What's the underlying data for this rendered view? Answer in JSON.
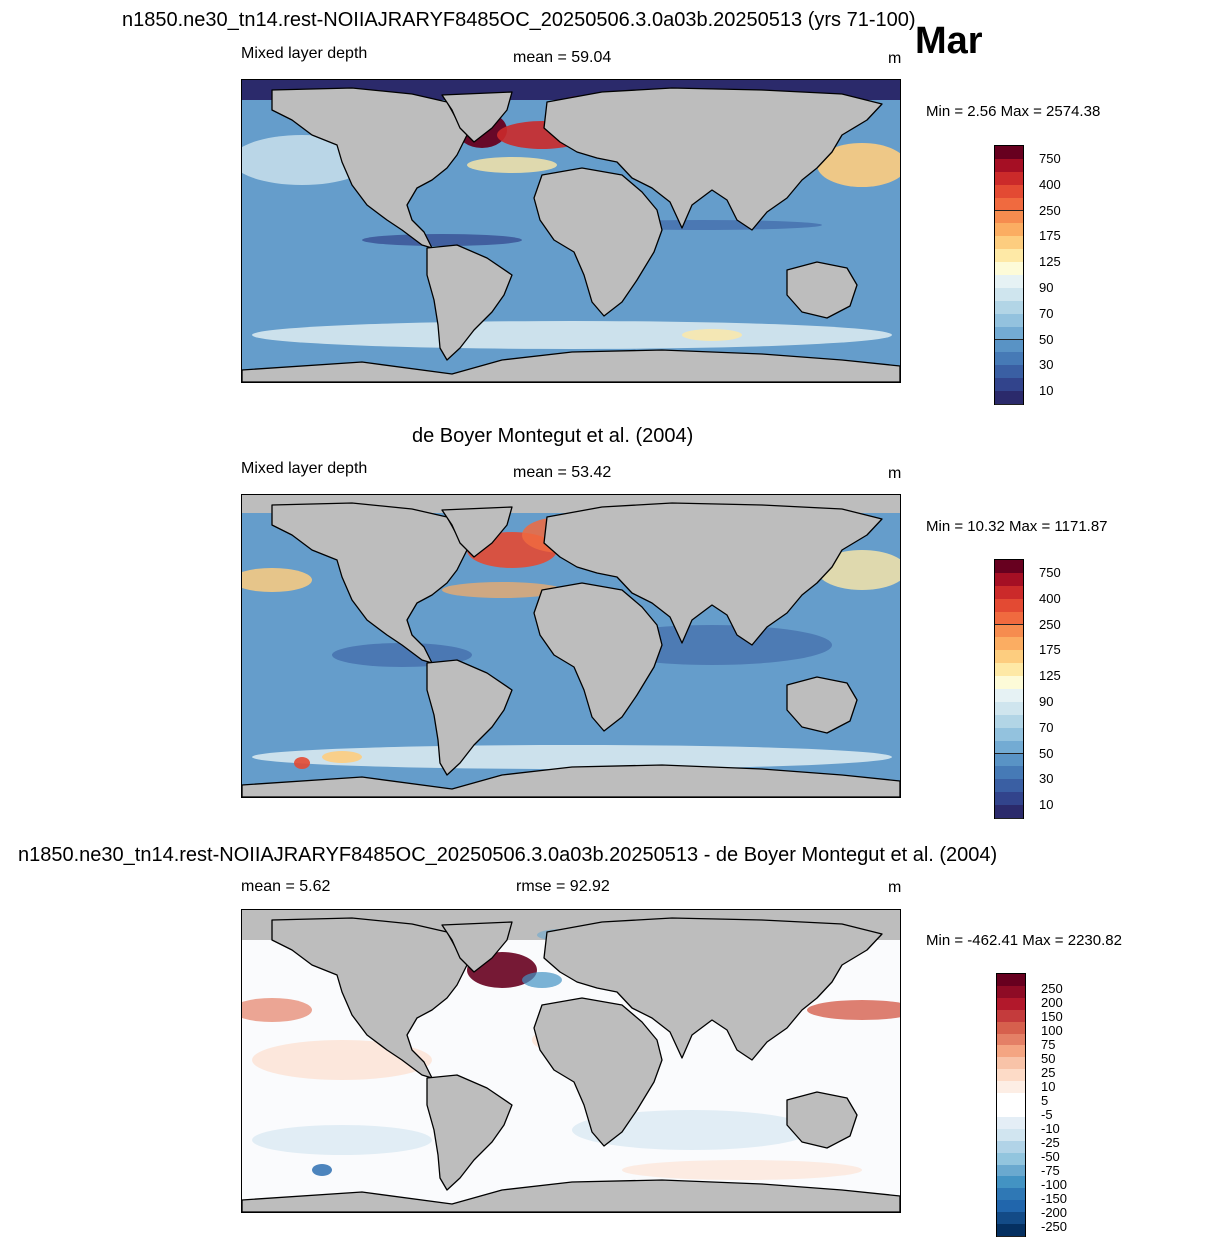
{
  "figure": {
    "title": "n1850.ne30_tn14.rest-NOIIAJRARYF8485OC_20250506.3.0a03b.20250513 (yrs 71-100)",
    "month": "Mar"
  },
  "panels": [
    {
      "id": "model",
      "left_label": "Mixed layer depth",
      "center_label": "mean =  59.04",
      "right_label": "m",
      "minmax": "Min =   2.56 Max = 2574.38",
      "colorbar": {
        "labels": [
          "750",
          "400",
          "250",
          "175",
          "125",
          "90",
          "70",
          "50",
          "30",
          "10"
        ],
        "colors": [
          "#67001f",
          "#a50f24",
          "#cb2a2a",
          "#e34a33",
          "#f06a3f",
          "#f68c4f",
          "#fbad62",
          "#fdcd7f",
          "#fee9a6",
          "#fdfbd8",
          "#e6f2f4",
          "#cfe5ee",
          "#b2d5e6",
          "#93c2de",
          "#73abd3",
          "#5993c5",
          "#467ab6",
          "#3a5fa3",
          "#32448c",
          "#2b2a6b"
        ]
      }
    },
    {
      "id": "obs",
      "heading": "de Boyer Montegut et al. (2004)",
      "left_label": "Mixed layer depth",
      "center_label": "mean =  53.42",
      "right_label": "m",
      "minmax": "Min =  10.32 Max = 1171.87",
      "colorbar": {
        "labels": [
          "750",
          "400",
          "250",
          "175",
          "125",
          "90",
          "70",
          "50",
          "30",
          "10"
        ],
        "colors": [
          "#67001f",
          "#a50f24",
          "#cb2a2a",
          "#e34a33",
          "#f06a3f",
          "#f68c4f",
          "#fbad62",
          "#fdcd7f",
          "#fee9a6",
          "#fdfbd8",
          "#e6f2f4",
          "#cfe5ee",
          "#b2d5e6",
          "#93c2de",
          "#73abd3",
          "#5993c5",
          "#467ab6",
          "#3a5fa3",
          "#32448c",
          "#2b2a6b"
        ]
      }
    },
    {
      "id": "diff",
      "heading": "n1850.ne30_tn14.rest-NOIIAJRARYF8485OC_20250506.3.0a03b.20250513 - de Boyer Montegut et al. (2004)",
      "left_label": "mean =   5.62",
      "center_label": "rmse =  92.92",
      "right_label": "m",
      "minmax": "Min = -462.41 Max = 2230.82",
      "colorbar": {
        "labels": [
          "250",
          "200",
          "150",
          "100",
          "75",
          "50",
          "25",
          "10",
          "5",
          "-5",
          "-10",
          "-25",
          "-50",
          "-75",
          "-100",
          "-150",
          "-200",
          "-250"
        ],
        "colors": [
          "#67001f",
          "#8e0b25",
          "#b2182b",
          "#c43b3c",
          "#d6604d",
          "#e48066",
          "#f4a582",
          "#f8c3a8",
          "#fddbc7",
          "#fdeee5",
          "#ffffff",
          "#ffffff",
          "#e4eef6",
          "#d1e5f0",
          "#b1d3e7",
          "#92c5de",
          "#6aa9cf",
          "#4393c3",
          "#2f78b5",
          "#2166ac",
          "#134b87",
          "#053061"
        ]
      }
    }
  ]
}
